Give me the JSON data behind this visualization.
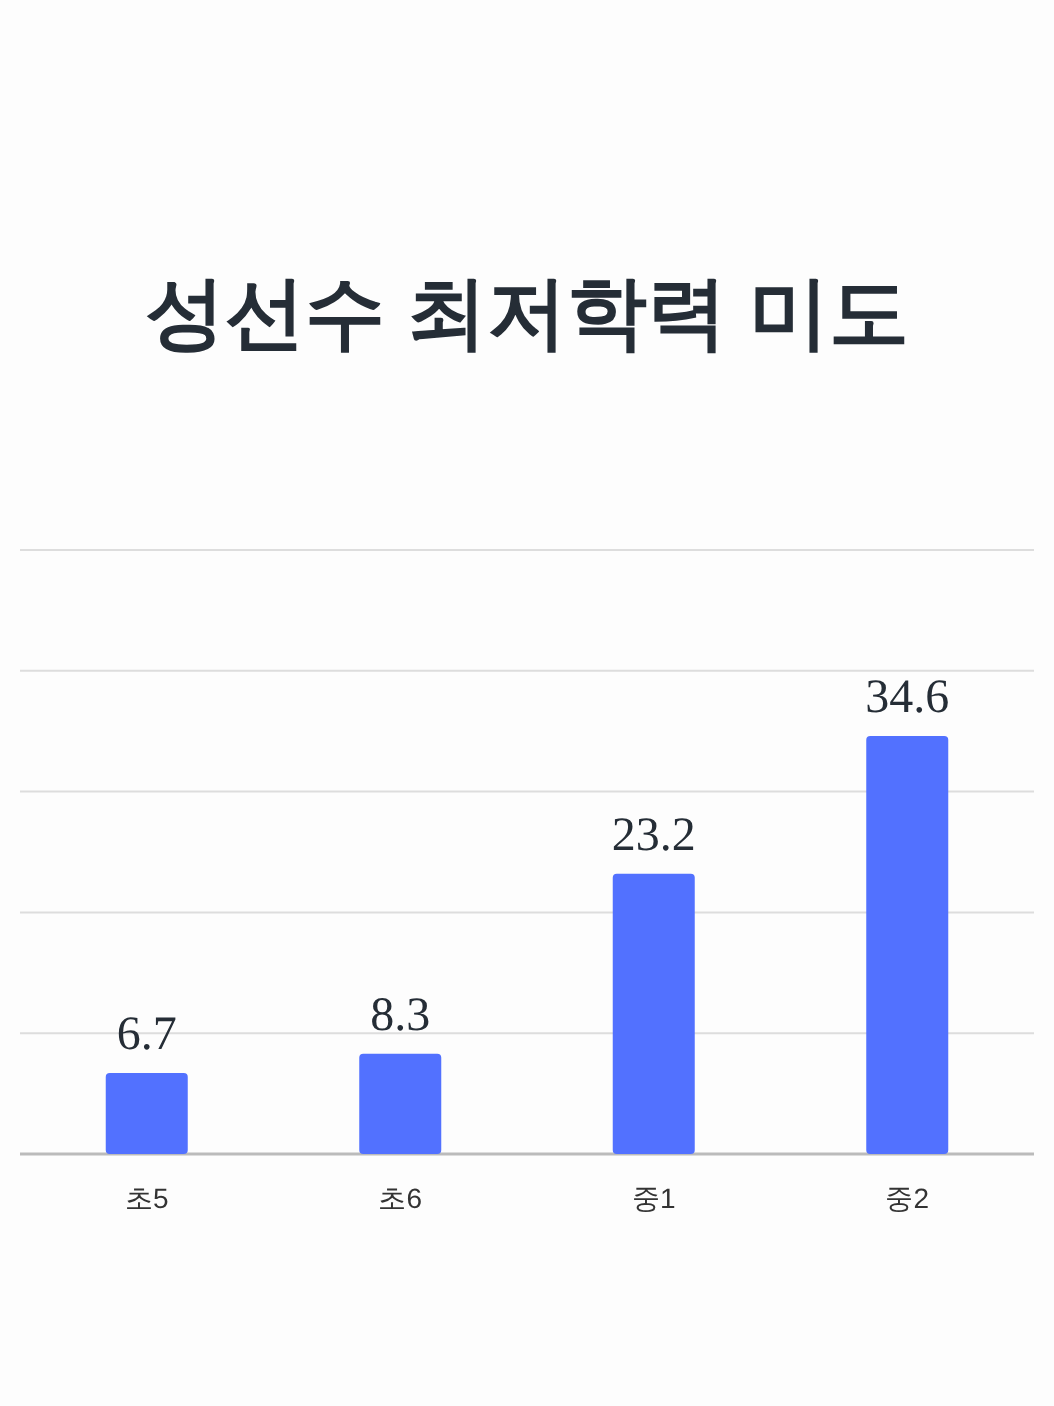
{
  "chart_data": {
    "type": "bar",
    "title": "성선수 최저학력 미도",
    "categories": [
      "초5",
      "초6",
      "중1",
      "중2"
    ],
    "values": [
      6.7,
      8.3,
      23.2,
      34.6
    ],
    "color": "#5271ff",
    "ylim": [
      0,
      50
    ],
    "yticks": [
      {
        "value": 0,
        "label": null
      },
      {
        "value": 10,
        "label": null
      },
      {
        "value": 20,
        "label": null
      },
      {
        "value": 30,
        "label": null
      },
      {
        "value": 40,
        "label": null
      },
      {
        "value": 50,
        "label": null
      }
    ],
    "grid": "y",
    "data_labels": true
  }
}
